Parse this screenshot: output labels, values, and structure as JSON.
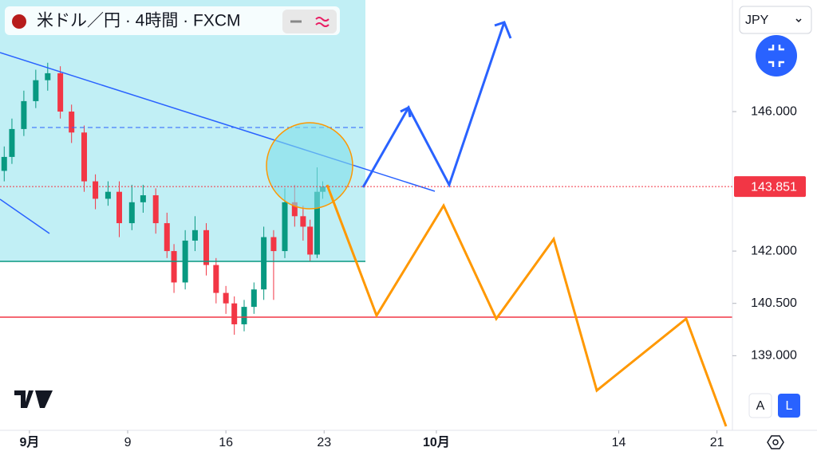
{
  "chart_data": {
    "type": "candlestick",
    "title": "米ドル／円 · 4時間 · FXCM",
    "x": [
      -1.8,
      -1.25,
      -0.4,
      0.45,
      1.3,
      2.2,
      3.0,
      3.9,
      4.7,
      5.6,
      6.4,
      7.3,
      8.1,
      9.0,
      9.8,
      10.3,
      11.1,
      11.8,
      12.6,
      13.3,
      14.0,
      14.6,
      15.3,
      16.0,
      16.7,
      17.4,
      18.2,
      18.9,
      19.5,
      20.0,
      20.5,
      20.9
    ],
    "open": [
      144.3,
      144.7,
      145.5,
      146.3,
      146.9,
      147.1,
      146.0,
      145.4,
      144.0,
      143.5,
      143.7,
      142.8,
      143.4,
      143.6,
      142.8,
      142.0,
      141.1,
      142.3,
      142.6,
      141.6,
      140.8,
      140.5,
      139.9,
      140.4,
      140.9,
      142.4,
      142.0,
      143.4,
      143.0,
      142.7,
      141.9,
      143.7
    ],
    "high": [
      145.0,
      145.8,
      146.6,
      147.2,
      147.4,
      147.3,
      146.2,
      145.6,
      144.2,
      144.0,
      144.0,
      143.9,
      143.9,
      143.8,
      143.1,
      142.2,
      142.6,
      143.0,
      142.8,
      141.8,
      141.0,
      140.7,
      140.6,
      141.1,
      142.7,
      142.6,
      143.8,
      143.9,
      143.3,
      142.9,
      144.4,
      144.0
    ],
    "low": [
      144.0,
      144.5,
      145.3,
      146.1,
      146.6,
      145.8,
      145.1,
      143.7,
      143.2,
      143.3,
      142.4,
      142.6,
      143.1,
      142.5,
      141.8,
      140.8,
      140.9,
      142.0,
      141.3,
      140.5,
      140.2,
      139.6,
      139.7,
      140.2,
      140.6,
      140.6,
      141.8,
      142.7,
      142.3,
      141.7,
      141.8,
      143.5
    ],
    "close": [
      144.7,
      145.5,
      146.3,
      146.9,
      147.1,
      146.0,
      145.4,
      144.0,
      143.5,
      143.7,
      142.8,
      143.4,
      143.6,
      142.8,
      142.0,
      141.1,
      142.3,
      142.6,
      141.6,
      140.8,
      140.5,
      139.9,
      140.4,
      140.9,
      142.4,
      142.0,
      143.4,
      143.0,
      142.7,
      141.9,
      143.7,
      143.85
    ],
    "up_color": "#089981",
    "down_color": "#f23645",
    "xlim": [
      -2.1,
      50.1
    ],
    "xticks": [
      {
        "value": 0,
        "label": "9月"
      },
      {
        "value": 7,
        "label": "9"
      },
      {
        "value": 14,
        "label": "16"
      },
      {
        "value": 21,
        "label": "23"
      },
      {
        "value": 29,
        "label": "10月"
      },
      {
        "value": 42,
        "label": "14"
      },
      {
        "value": 49,
        "label": "21"
      }
    ],
    "ylim": [
      136.86,
      149.2
    ],
    "yticks": [
      {
        "value": 139,
        "label": "139.000"
      },
      {
        "value": 140.5,
        "label": "140.500"
      },
      {
        "value": 142,
        "label": "142.000"
      },
      {
        "value": 146,
        "label": "146.000"
      }
    ],
    "current_price": 143.851
  },
  "ui": {
    "currency": "JPY",
    "buttons": [
      "A",
      "L"
    ]
  }
}
